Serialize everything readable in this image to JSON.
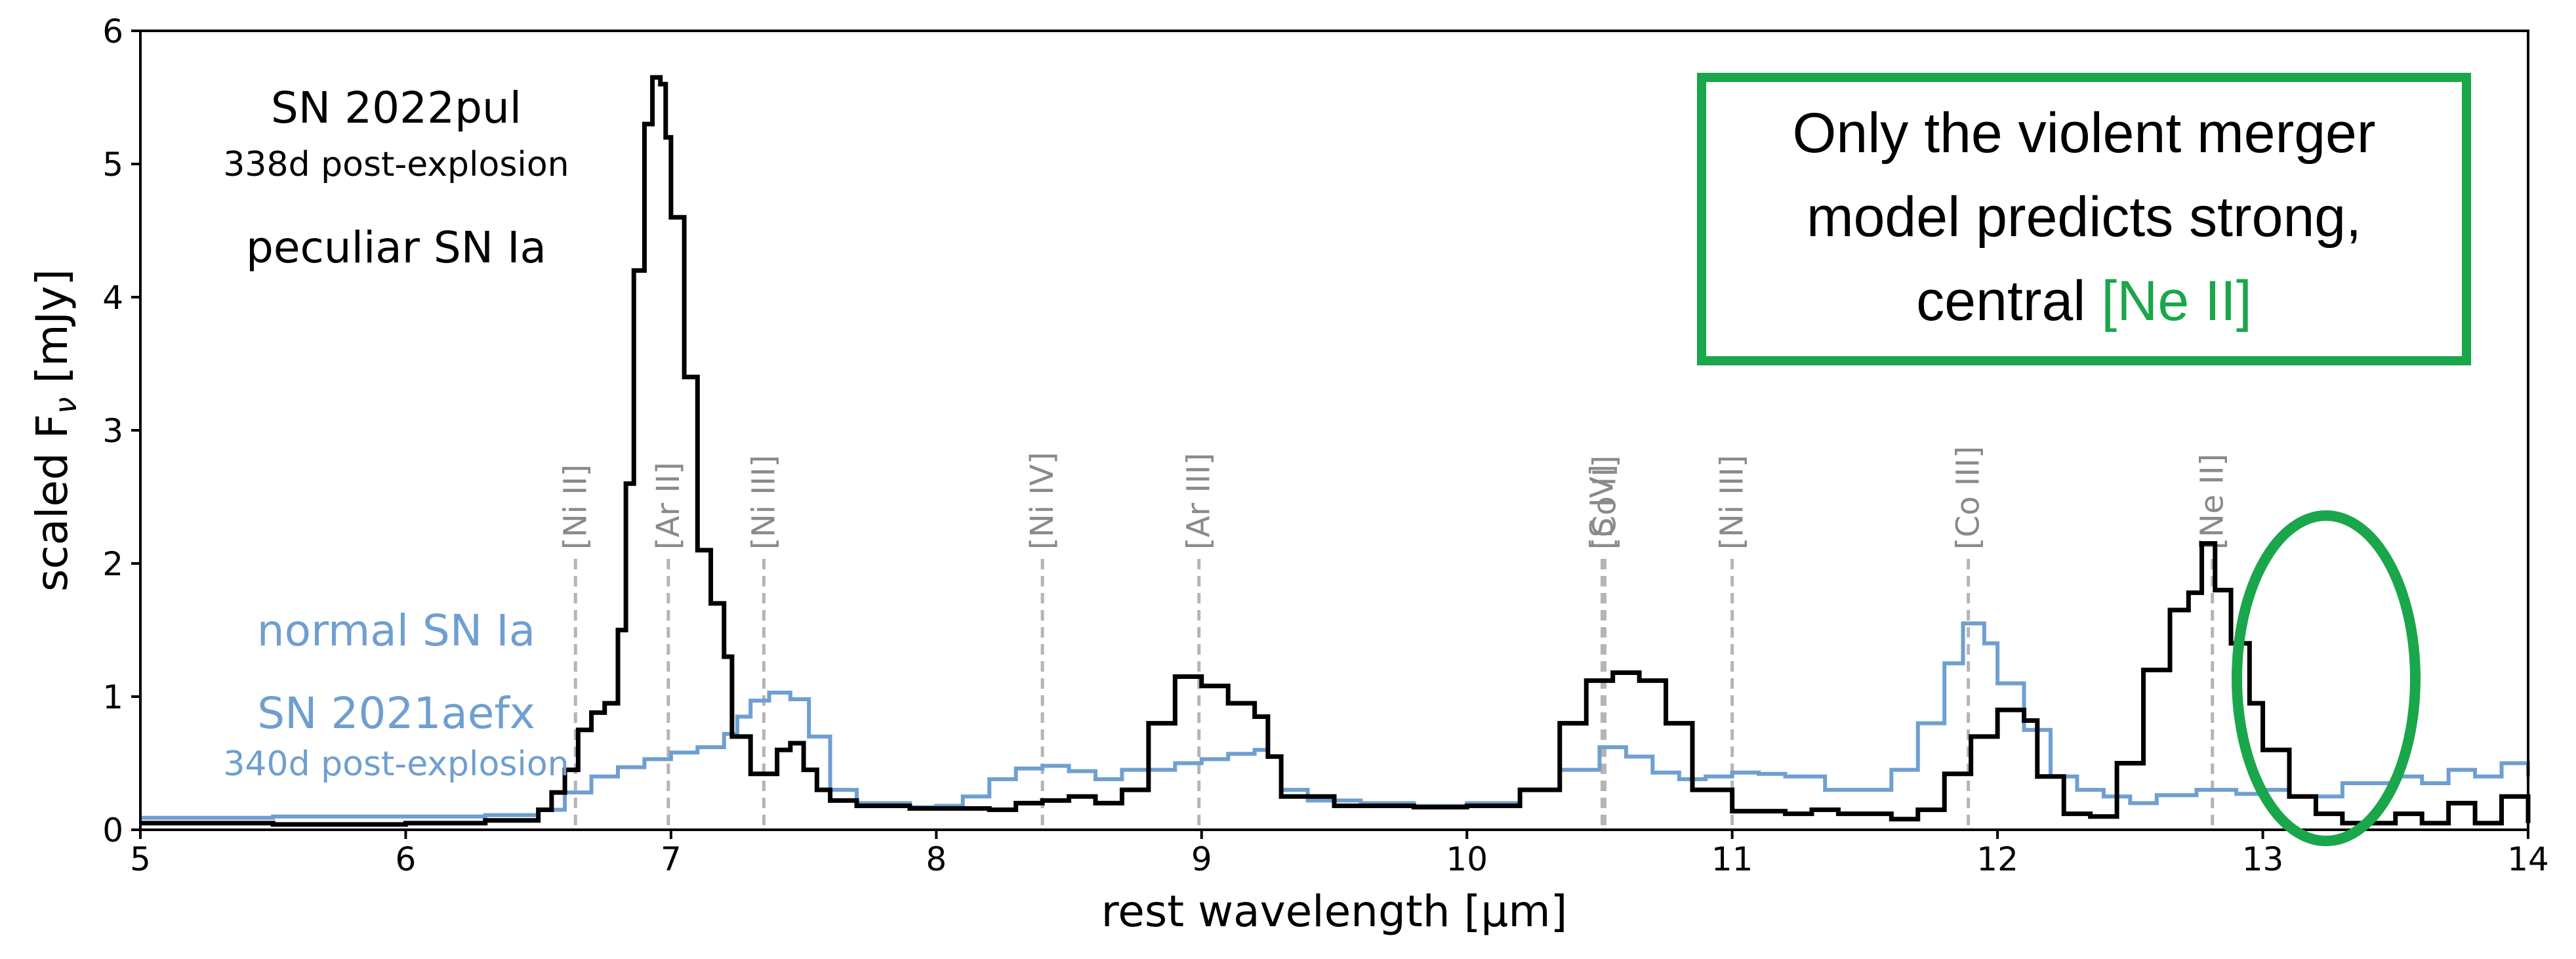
{
  "chart_data": {
    "type": "line",
    "xlabel": "rest wavelength [μm]",
    "ylabel_main": "scaled F",
    "ylabel_sub": "ν",
    "ylabel_unit": " [mJy]",
    "xlim": [
      5,
      14
    ],
    "ylim": [
      0,
      6
    ],
    "xticks": [
      5,
      6,
      7,
      8,
      9,
      10,
      11,
      12,
      13,
      14
    ],
    "yticks": [
      0,
      1,
      2,
      3,
      4,
      5,
      6
    ],
    "series": [
      {
        "name": "SN 2021aefx (normal SN Ia)",
        "color": "#6f9fd0",
        "points": [
          [
            5.0,
            0.09
          ],
          [
            5.5,
            0.1
          ],
          [
            6.0,
            0.1
          ],
          [
            6.3,
            0.11
          ],
          [
            6.5,
            0.15
          ],
          [
            6.6,
            0.28
          ],
          [
            6.7,
            0.4
          ],
          [
            6.8,
            0.47
          ],
          [
            6.9,
            0.53
          ],
          [
            7.0,
            0.58
          ],
          [
            7.1,
            0.62
          ],
          [
            7.2,
            0.72
          ],
          [
            7.25,
            0.85
          ],
          [
            7.3,
            0.97
          ],
          [
            7.37,
            1.03
          ],
          [
            7.45,
            0.98
          ],
          [
            7.52,
            0.7
          ],
          [
            7.6,
            0.3
          ],
          [
            7.7,
            0.2
          ],
          [
            7.9,
            0.17
          ],
          [
            8.0,
            0.18
          ],
          [
            8.1,
            0.25
          ],
          [
            8.2,
            0.38
          ],
          [
            8.3,
            0.46
          ],
          [
            8.4,
            0.48
          ],
          [
            8.5,
            0.44
          ],
          [
            8.6,
            0.38
          ],
          [
            8.7,
            0.45
          ],
          [
            8.9,
            0.5
          ],
          [
            9.0,
            0.53
          ],
          [
            9.1,
            0.57
          ],
          [
            9.2,
            0.6
          ],
          [
            9.25,
            0.55
          ],
          [
            9.3,
            0.3
          ],
          [
            9.4,
            0.22
          ],
          [
            9.6,
            0.2
          ],
          [
            9.8,
            0.18
          ],
          [
            10.0,
            0.2
          ],
          [
            10.2,
            0.3
          ],
          [
            10.35,
            0.45
          ],
          [
            10.5,
            0.62
          ],
          [
            10.6,
            0.55
          ],
          [
            10.7,
            0.43
          ],
          [
            10.8,
            0.38
          ],
          [
            10.9,
            0.4
          ],
          [
            11.0,
            0.43
          ],
          [
            11.1,
            0.42
          ],
          [
            11.2,
            0.4
          ],
          [
            11.35,
            0.3
          ],
          [
            11.5,
            0.3
          ],
          [
            11.6,
            0.45
          ],
          [
            11.7,
            0.8
          ],
          [
            11.8,
            1.25
          ],
          [
            11.87,
            1.55
          ],
          [
            11.95,
            1.4
          ],
          [
            12.0,
            1.1
          ],
          [
            12.1,
            0.75
          ],
          [
            12.2,
            0.4
          ],
          [
            12.3,
            0.3
          ],
          [
            12.4,
            0.25
          ],
          [
            12.5,
            0.2
          ],
          [
            12.6,
            0.26
          ],
          [
            12.75,
            0.3
          ],
          [
            12.9,
            0.27
          ],
          [
            13.0,
            0.3
          ],
          [
            13.1,
            0.25
          ],
          [
            13.3,
            0.35
          ],
          [
            13.5,
            0.4
          ],
          [
            13.6,
            0.35
          ],
          [
            13.7,
            0.45
          ],
          [
            13.8,
            0.4
          ],
          [
            13.9,
            0.5
          ],
          [
            14.0,
            0.4
          ]
        ]
      },
      {
        "name": "SN 2022pul (peculiar SN Ia)",
        "color": "#000000",
        "points": [
          [
            5.0,
            0.05
          ],
          [
            5.5,
            0.04
          ],
          [
            6.0,
            0.05
          ],
          [
            6.3,
            0.07
          ],
          [
            6.5,
            0.15
          ],
          [
            6.55,
            0.28
          ],
          [
            6.6,
            0.45
          ],
          [
            6.65,
            0.75
          ],
          [
            6.7,
            0.88
          ],
          [
            6.75,
            0.95
          ],
          [
            6.8,
            1.5
          ],
          [
            6.83,
            2.6
          ],
          [
            6.86,
            4.2
          ],
          [
            6.9,
            5.3
          ],
          [
            6.93,
            5.65
          ],
          [
            6.96,
            5.6
          ],
          [
            6.98,
            5.2
          ],
          [
            7.0,
            4.6
          ],
          [
            7.05,
            3.4
          ],
          [
            7.1,
            2.1
          ],
          [
            7.15,
            1.7
          ],
          [
            7.2,
            1.3
          ],
          [
            7.23,
            0.7
          ],
          [
            7.3,
            0.42
          ],
          [
            7.4,
            0.6
          ],
          [
            7.45,
            0.65
          ],
          [
            7.5,
            0.45
          ],
          [
            7.55,
            0.3
          ],
          [
            7.6,
            0.22
          ],
          [
            7.7,
            0.18
          ],
          [
            7.9,
            0.16
          ],
          [
            8.0,
            0.16
          ],
          [
            8.2,
            0.15
          ],
          [
            8.3,
            0.2
          ],
          [
            8.4,
            0.22
          ],
          [
            8.5,
            0.25
          ],
          [
            8.6,
            0.2
          ],
          [
            8.7,
            0.3
          ],
          [
            8.8,
            0.8
          ],
          [
            8.9,
            1.15
          ],
          [
            9.0,
            1.08
          ],
          [
            9.1,
            0.95
          ],
          [
            9.2,
            0.85
          ],
          [
            9.25,
            0.55
          ],
          [
            9.3,
            0.25
          ],
          [
            9.5,
            0.18
          ],
          [
            9.8,
            0.17
          ],
          [
            10.0,
            0.18
          ],
          [
            10.2,
            0.3
          ],
          [
            10.35,
            0.8
          ],
          [
            10.45,
            1.12
          ],
          [
            10.55,
            1.18
          ],
          [
            10.65,
            1.12
          ],
          [
            10.75,
            0.8
          ],
          [
            10.85,
            0.3
          ],
          [
            11.0,
            0.14
          ],
          [
            11.2,
            0.12
          ],
          [
            11.3,
            0.15
          ],
          [
            11.4,
            0.12
          ],
          [
            11.6,
            0.08
          ],
          [
            11.7,
            0.15
          ],
          [
            11.8,
            0.42
          ],
          [
            11.9,
            0.7
          ],
          [
            12.0,
            0.9
          ],
          [
            12.1,
            0.82
          ],
          [
            12.15,
            0.4
          ],
          [
            12.25,
            0.12
          ],
          [
            12.35,
            0.1
          ],
          [
            12.45,
            0.5
          ],
          [
            12.55,
            1.2
          ],
          [
            12.65,
            1.65
          ],
          [
            12.72,
            1.78
          ],
          [
            12.77,
            2.15
          ],
          [
            12.82,
            1.8
          ],
          [
            12.88,
            1.4
          ],
          [
            12.95,
            0.95
          ],
          [
            13.0,
            0.6
          ],
          [
            13.1,
            0.25
          ],
          [
            13.2,
            0.12
          ],
          [
            13.3,
            0.05
          ],
          [
            13.5,
            0.12
          ],
          [
            13.6,
            0.05
          ],
          [
            13.7,
            0.2
          ],
          [
            13.8,
            0.05
          ],
          [
            13.9,
            0.25
          ],
          [
            14.0,
            0.05
          ]
        ]
      }
    ],
    "line_ids": [
      {
        "label": "[Ni II]",
        "x": 6.64
      },
      {
        "label": "[Ar II]",
        "x": 6.99
      },
      {
        "label": "[Ni III]",
        "x": 7.35
      },
      {
        "label": "[Ni IV]",
        "x": 8.4
      },
      {
        "label": "[Ar III]",
        "x": 8.99
      },
      {
        "label": "[S IV]",
        "x": 10.51
      },
      {
        "label": "[Co II]",
        "x": 10.52
      },
      {
        "label": "[Ni III]",
        "x": 11.0
      },
      {
        "label": "[Co III]",
        "x": 11.89
      },
      {
        "label": "[Ne II]",
        "x": 12.81
      }
    ],
    "annotations": {
      "peculiar": {
        "name": "SN 2022pul",
        "epoch": "338d post-explosion",
        "type": "peculiar SN Ia",
        "color": "#000000"
      },
      "normal": {
        "type": "normal SN Ia",
        "name": "SN 2021aefx",
        "epoch": "340d post-explosion",
        "color": "#6f9fd0"
      },
      "callout": {
        "line1": "Only the violent merger",
        "line2": "model predicts strong,",
        "line3_prefix": "central ",
        "line3_highlight": "[Ne II]",
        "border_color": "#1aa64a",
        "highlight_color": "#1aa64a"
      },
      "ellipse_color": "#1aa64a"
    }
  }
}
